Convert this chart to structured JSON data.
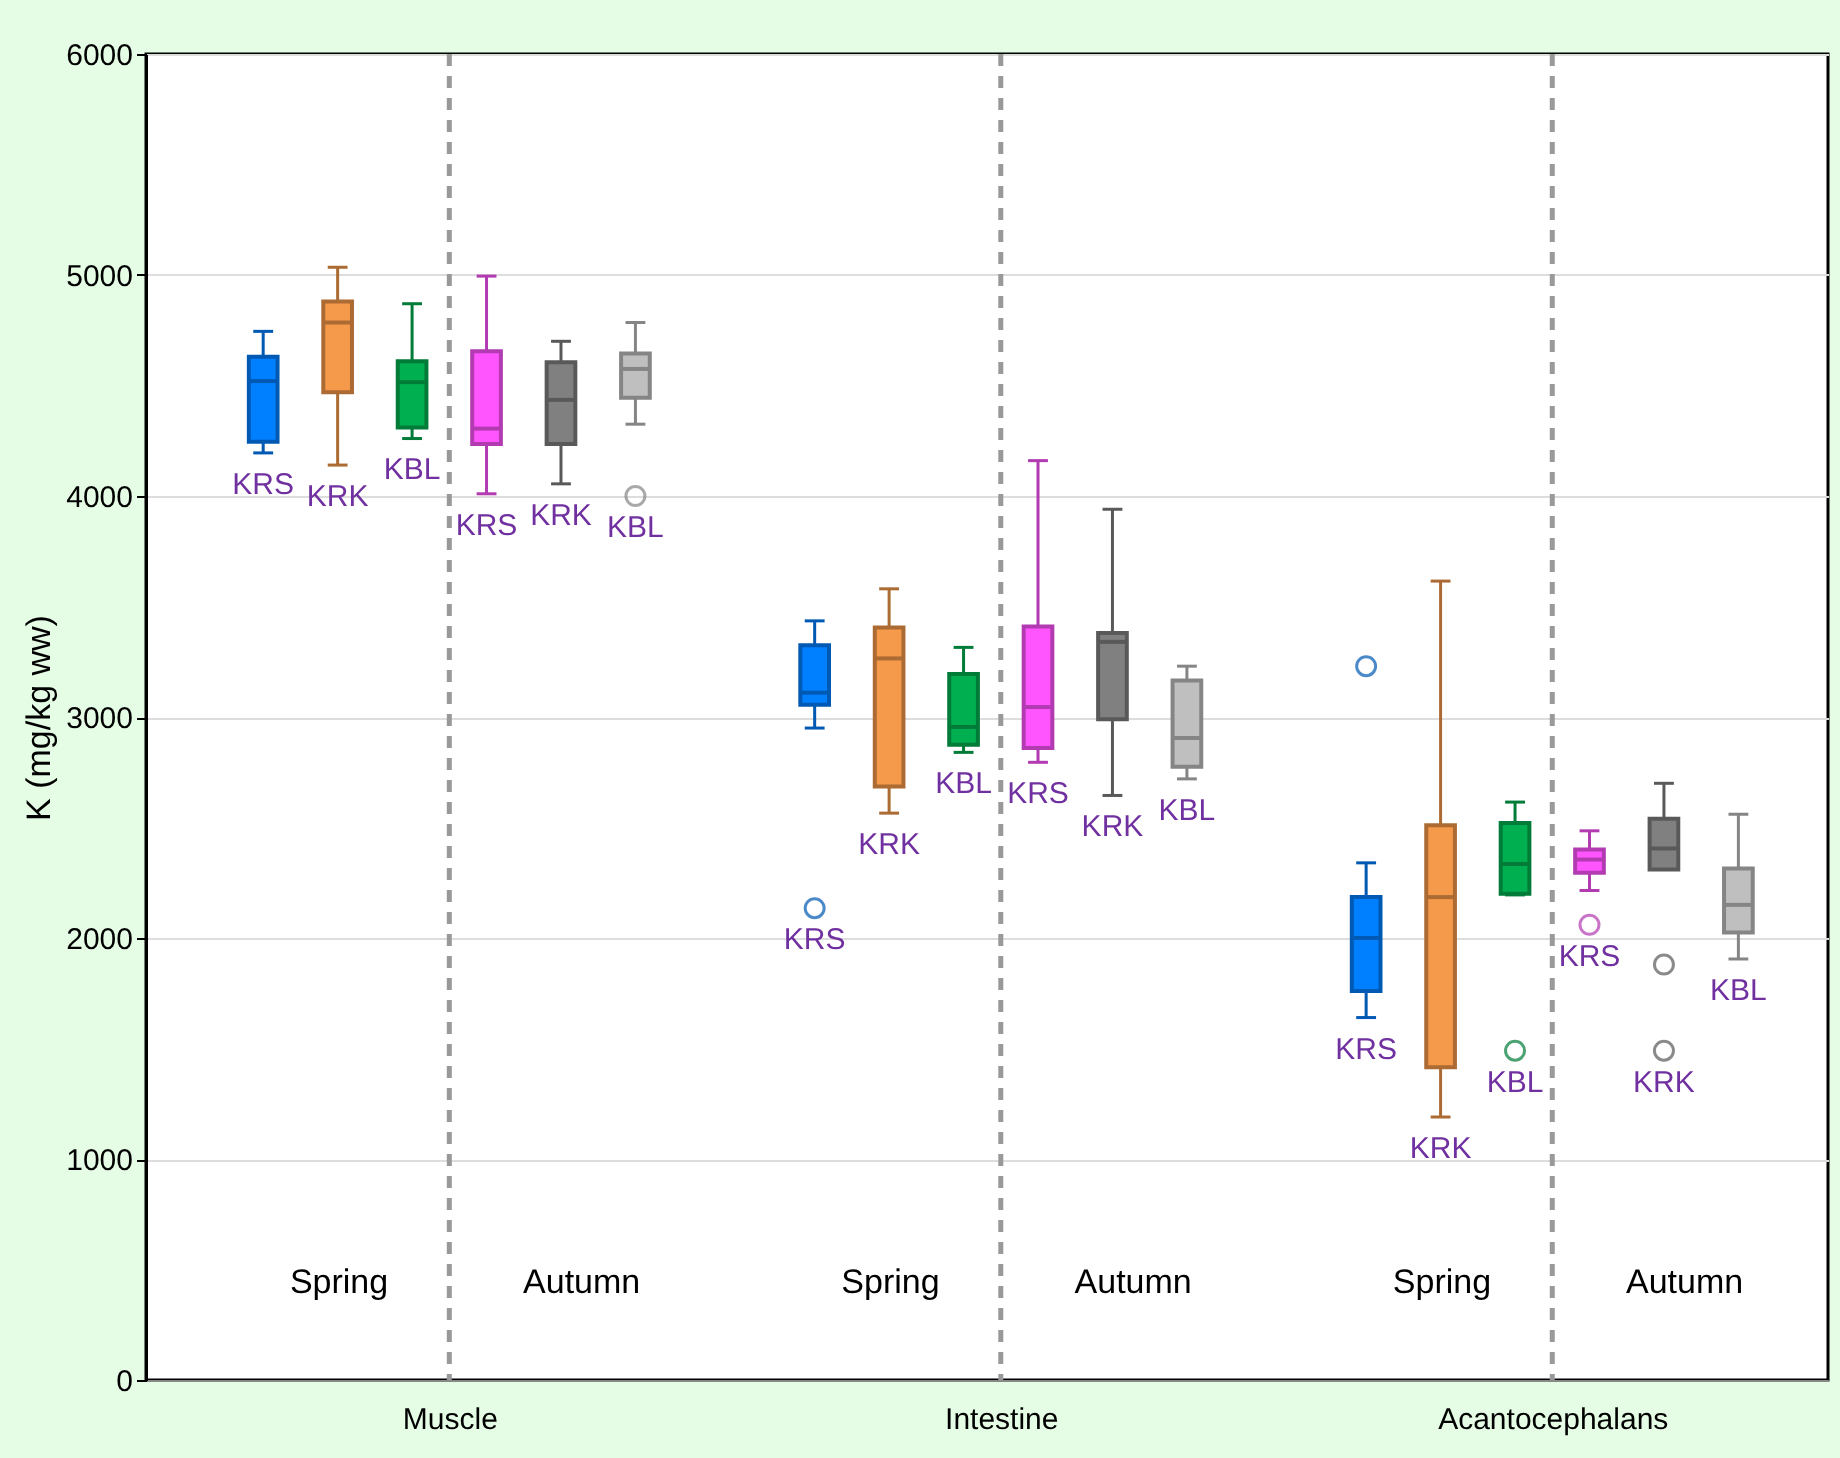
{
  "chart_data": {
    "type": "box",
    "ylabel": "K (mg/kg ww)",
    "categories": [
      "Muscle",
      "Intestine",
      "Acantocephalans"
    ],
    "ylim": [
      0,
      6000
    ],
    "yticks": [
      0,
      1000,
      2000,
      3000,
      4000,
      5000,
      6000
    ],
    "grid": "y",
    "marker": "circle",
    "ref_lines": [
      {
        "axis": "x",
        "value": "Muscle",
        "line_style": "dashed",
        "color": "#999999"
      },
      {
        "axis": "x",
        "value": "Intestine",
        "line_style": "dashed",
        "color": "#999999"
      },
      {
        "axis": "x",
        "value": "Acantocephalans",
        "line_style": "dashed",
        "color": "#999999"
      }
    ],
    "annotations": [
      "Spring",
      "Autumn",
      "Spring",
      "Autumn",
      "Spring",
      "Autumn"
    ],
    "series": [
      {
        "name": "KRS",
        "color": "#0080ff",
        "boxes": [
          {
            "low": 4195,
            "q1": 4245,
            "median": 4520,
            "q3": 4630,
            "high": 4745
          },
          {
            "low": 2950,
            "q1": 3055,
            "median": 3110,
            "q3": 3325,
            "high": 3435,
            "outliers": [
              2135
            ]
          },
          {
            "low": 1640,
            "q1": 1760,
            "median": 2000,
            "q3": 2185,
            "high": 2340,
            "outliers": [
              3230
            ]
          }
        ]
      },
      {
        "name": "KRK",
        "color": "#f5994a",
        "boxes": [
          {
            "low": 4140,
            "q1": 4470,
            "median": 4785,
            "q3": 4880,
            "high": 5035
          },
          {
            "low": 2565,
            "q1": 2685,
            "median": 3265,
            "q3": 3405,
            "high": 3580
          },
          {
            "low": 1190,
            "q1": 1415,
            "median": 2185,
            "q3": 2510,
            "high": 3615
          }
        ]
      },
      {
        "name": "KBL",
        "color": "#00b050",
        "boxes": [
          {
            "low": 4260,
            "q1": 4310,
            "median": 4515,
            "q3": 4610,
            "high": 4870
          },
          {
            "low": 2840,
            "q1": 2875,
            "median": 2955,
            "q3": 3195,
            "high": 3315
          },
          {
            "low": 2195,
            "q1": 2200,
            "median": 2335,
            "q3": 2520,
            "high": 2615,
            "outliers": [
              1490
            ]
          }
        ]
      },
      {
        "name": "KRS",
        "color": "#ff55ff",
        "boxes": [
          {
            "low": 4010,
            "q1": 4235,
            "median": 4305,
            "q3": 4655,
            "high": 4995
          },
          {
            "low": 2795,
            "q1": 2860,
            "median": 3045,
            "q3": 3410,
            "high": 4160
          },
          {
            "low": 2215,
            "q1": 2295,
            "median": 2355,
            "q3": 2400,
            "high": 2485,
            "outliers": [
              2060
            ]
          }
        ]
      },
      {
        "name": "KRK",
        "color": "#808080",
        "boxes": [
          {
            "low": 4055,
            "q1": 4235,
            "median": 4435,
            "q3": 4605,
            "high": 4700
          },
          {
            "low": 2645,
            "q1": 2990,
            "median": 3340,
            "q3": 3380,
            "high": 3940
          },
          {
            "low": 2310,
            "q1": 2310,
            "median": 2405,
            "q3": 2540,
            "high": 2700,
            "outliers": [
              1880,
              1490
            ]
          }
        ]
      },
      {
        "name": "KBL",
        "color": "#bfbfbf",
        "boxes": [
          {
            "low": 4325,
            "q1": 4445,
            "median": 4575,
            "q3": 4645,
            "high": 4785,
            "outliers": [
              4000
            ]
          },
          {
            "low": 2720,
            "q1": 2775,
            "median": 2905,
            "q3": 3165,
            "high": 3230
          },
          {
            "low": 1905,
            "q1": 2025,
            "median": 2150,
            "q3": 2315,
            "high": 2560
          }
        ]
      }
    ]
  }
}
